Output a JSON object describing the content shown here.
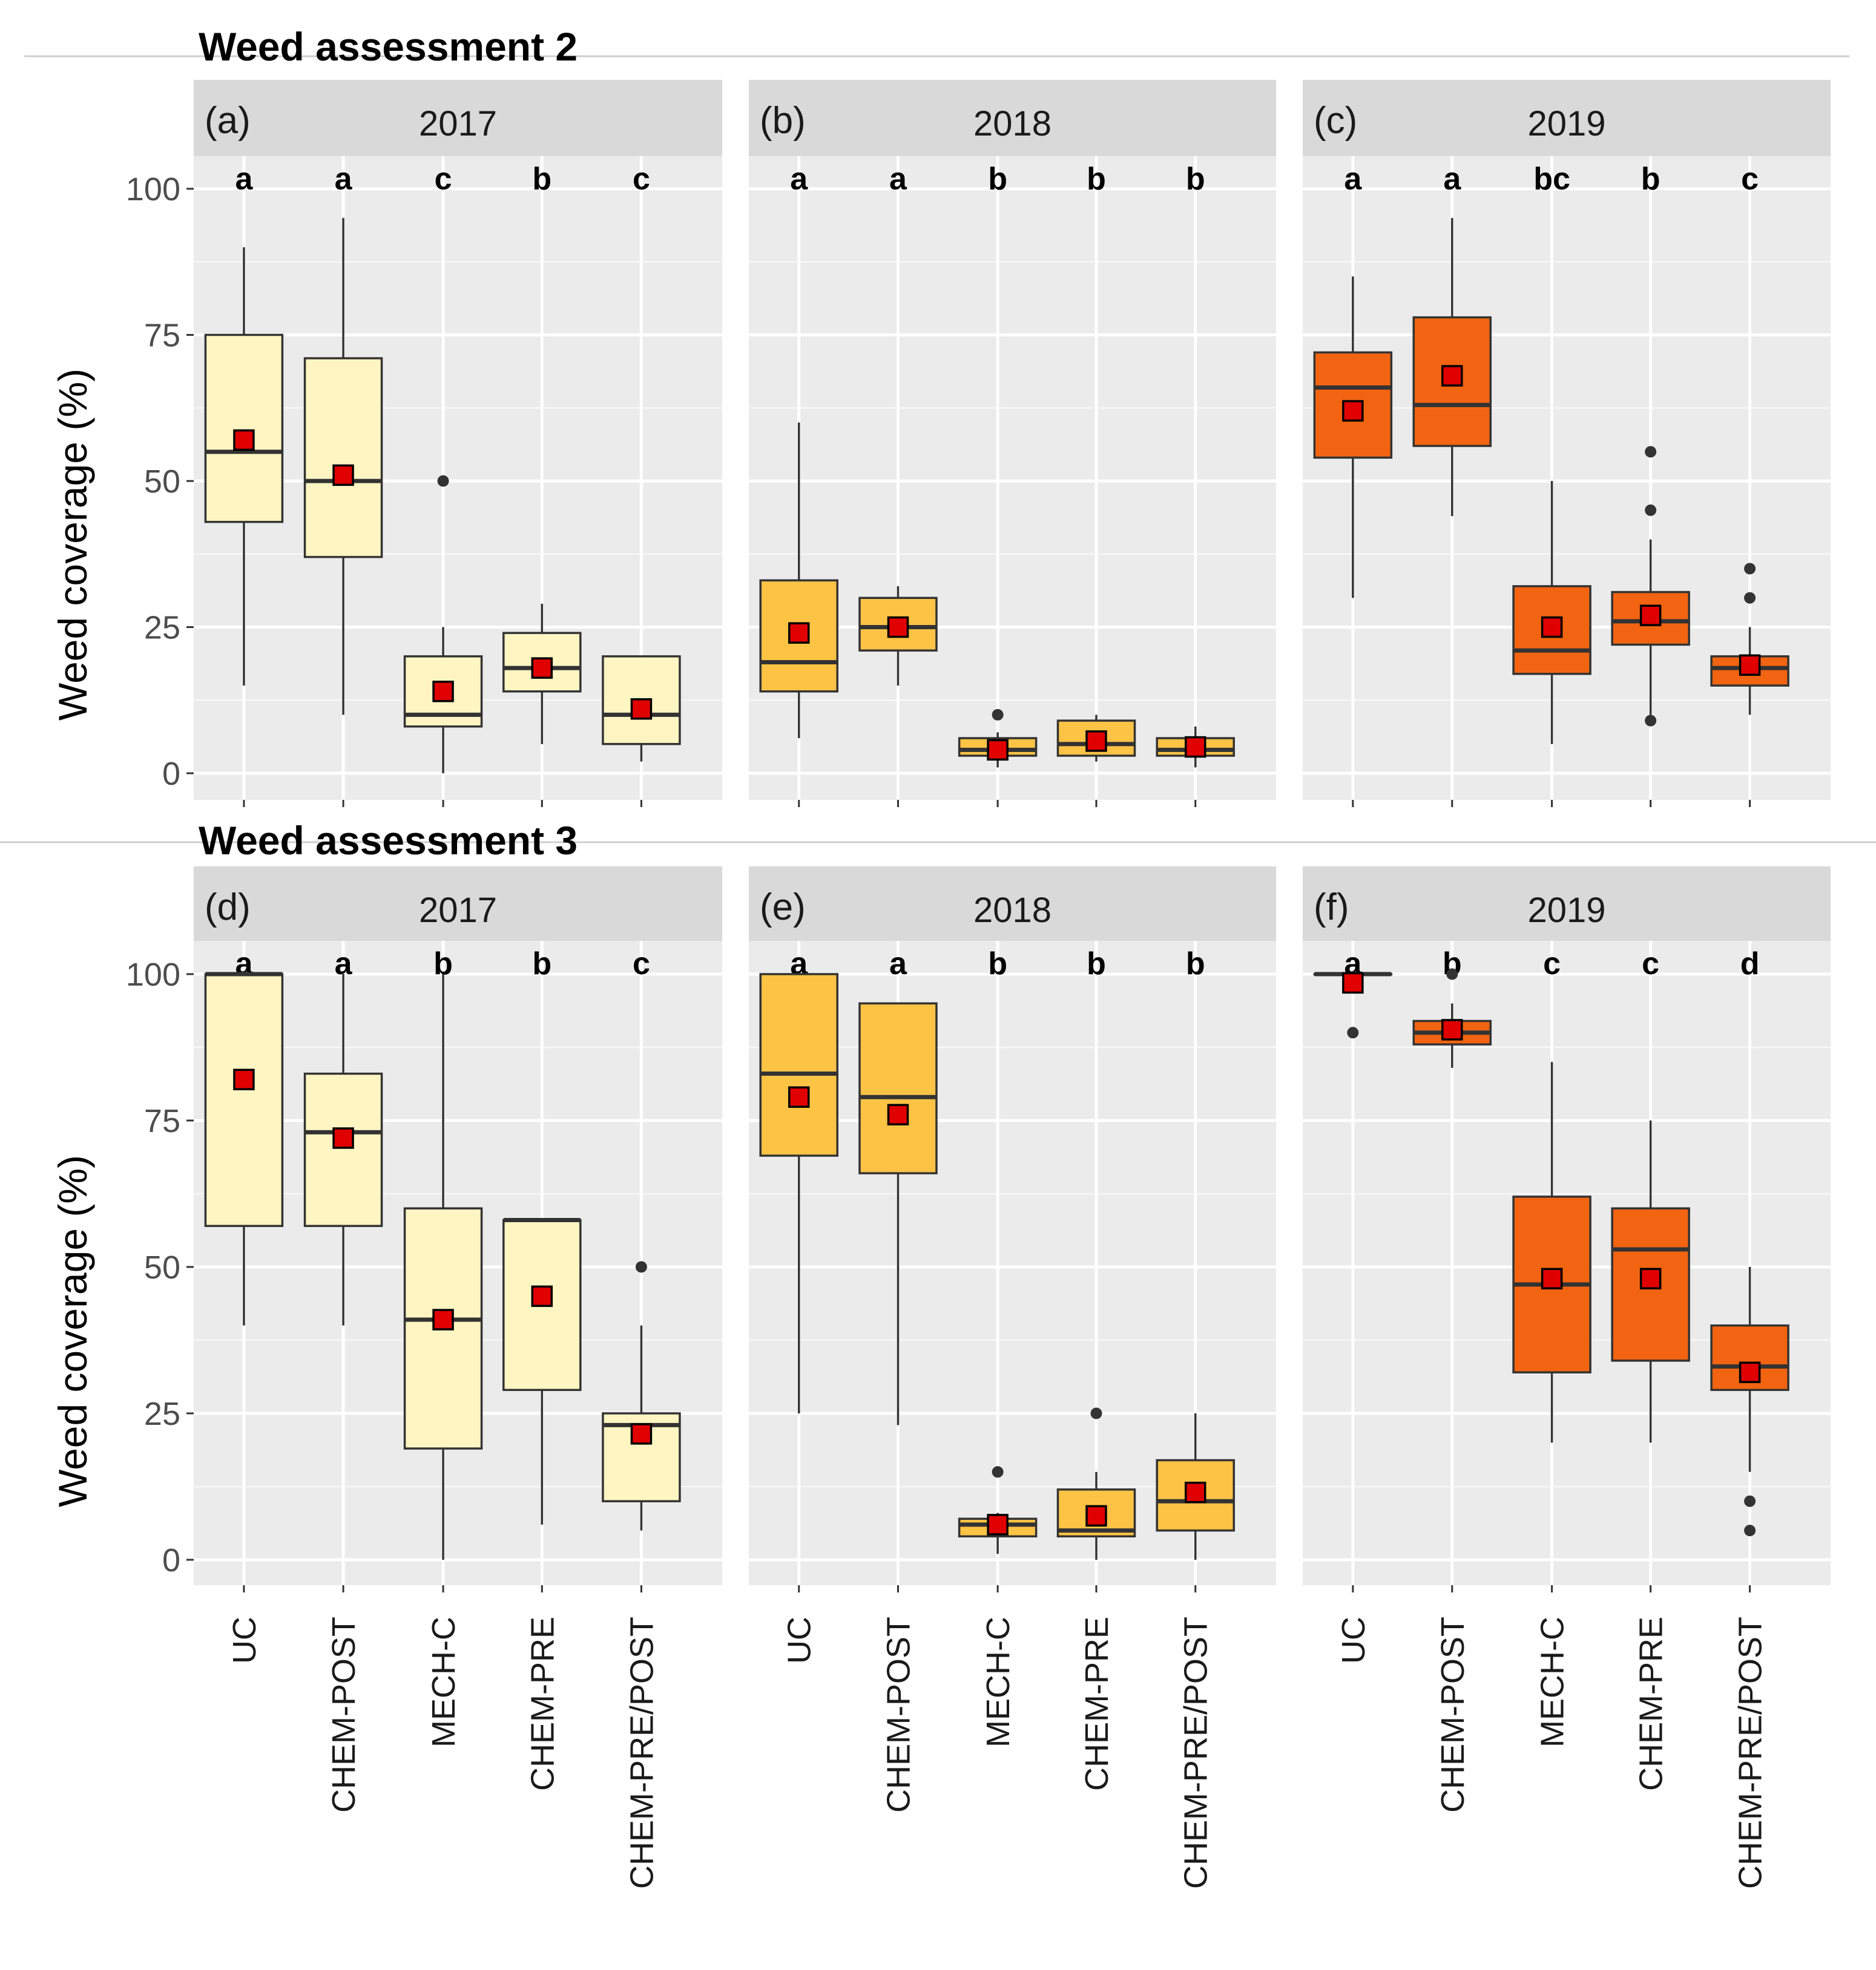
{
  "figure": {
    "ylabel": "Weed coverage (%)",
    "yticks": [
      0,
      25,
      50,
      75,
      100
    ],
    "treatments": [
      "UC",
      "CHEM-POST",
      "MECH-C",
      "CHEM-PRE",
      "CHEM-PRE/POST"
    ],
    "year_colors": {
      "2017": "#fff5c2",
      "2018": "#fdc345",
      "2019": "#f26411"
    },
    "panel_bg": "#ebebeb",
    "strip_bg": "#d9d9d9",
    "mean_marker_color": "#e00000"
  },
  "chart_data": [
    {
      "type": "boxplot",
      "assessment": "Weed assessment 2",
      "panel": "(a)",
      "year": "2017",
      "ylim": [
        -4,
        107
      ],
      "boxes": [
        {
          "treatment": "UC",
          "letter": "a",
          "min": 15,
          "q1": 43,
          "median": 55,
          "q3": 75,
          "max": 90,
          "mean": 57,
          "outliers": []
        },
        {
          "treatment": "CHEM-POST",
          "letter": "a",
          "min": 10,
          "q1": 37,
          "median": 50,
          "q3": 71,
          "max": 95,
          "mean": 51,
          "outliers": []
        },
        {
          "treatment": "MECH-C",
          "letter": "c",
          "min": 0,
          "q1": 8,
          "median": 10,
          "q3": 20,
          "max": 25,
          "mean": 14,
          "outliers": [
            50
          ]
        },
        {
          "treatment": "CHEM-PRE",
          "letter": "b",
          "min": 5,
          "q1": 14,
          "median": 18,
          "q3": 24,
          "max": 29,
          "mean": 18,
          "outliers": []
        },
        {
          "treatment": "CHEM-PRE/POST",
          "letter": "c",
          "min": 2,
          "q1": 5,
          "median": 10,
          "q3": 20,
          "max": 20,
          "mean": 11,
          "outliers": []
        }
      ]
    },
    {
      "type": "boxplot",
      "assessment": "Weed assessment 2",
      "panel": "(b)",
      "year": "2018",
      "ylim": [
        -4,
        107
      ],
      "boxes": [
        {
          "treatment": "UC",
          "letter": "a",
          "min": 6,
          "q1": 14,
          "median": 19,
          "q3": 33,
          "max": 60,
          "mean": 24,
          "outliers": []
        },
        {
          "treatment": "CHEM-POST",
          "letter": "a",
          "min": 15,
          "q1": 21,
          "median": 25,
          "q3": 30,
          "max": 32,
          "mean": 25,
          "outliers": []
        },
        {
          "treatment": "MECH-C",
          "letter": "b",
          "min": 1,
          "q1": 3,
          "median": 4,
          "q3": 6,
          "max": 7,
          "mean": 4,
          "outliers": [
            10
          ]
        },
        {
          "treatment": "CHEM-PRE",
          "letter": "b",
          "min": 2,
          "q1": 3,
          "median": 5,
          "q3": 9,
          "max": 10,
          "mean": 5.5,
          "outliers": []
        },
        {
          "treatment": "CHEM-PRE/POST",
          "letter": "b",
          "min": 1,
          "q1": 3,
          "median": 4,
          "q3": 6,
          "max": 8,
          "mean": 4.5,
          "outliers": []
        }
      ]
    },
    {
      "type": "boxplot",
      "assessment": "Weed assessment 2",
      "panel": "(c)",
      "year": "2019",
      "ylim": [
        -4,
        107
      ],
      "boxes": [
        {
          "treatment": "UC",
          "letter": "a",
          "min": 30,
          "q1": 54,
          "median": 66,
          "q3": 72,
          "max": 85,
          "mean": 62,
          "outliers": []
        },
        {
          "treatment": "CHEM-POST",
          "letter": "a",
          "min": 44,
          "q1": 56,
          "median": 63,
          "q3": 78,
          "max": 95,
          "mean": 68,
          "outliers": []
        },
        {
          "treatment": "MECH-C",
          "letter": "bc",
          "min": 5,
          "q1": 17,
          "median": 21,
          "q3": 32,
          "max": 50,
          "mean": 25,
          "outliers": []
        },
        {
          "treatment": "CHEM-PRE",
          "letter": "b",
          "min": 10,
          "q1": 22,
          "median": 26,
          "q3": 31,
          "max": 40,
          "mean": 27,
          "outliers": [
            55,
            45,
            9
          ]
        },
        {
          "treatment": "CHEM-PRE/POST",
          "letter": "c",
          "min": 10,
          "q1": 15,
          "median": 18,
          "q3": 20,
          "max": 25,
          "mean": 18.5,
          "outliers": [
            35,
            30
          ]
        }
      ]
    },
    {
      "type": "boxplot",
      "assessment": "Weed assessment 3",
      "panel": "(d)",
      "year": "2017",
      "ylim": [
        -4,
        107
      ],
      "boxes": [
        {
          "treatment": "UC",
          "letter": "a",
          "min": 40,
          "q1": 57,
          "median": 100,
          "q3": 100,
          "max": 100,
          "mean": 82,
          "outliers": []
        },
        {
          "treatment": "CHEM-POST",
          "letter": "a",
          "min": 40,
          "q1": 57,
          "median": 73,
          "q3": 83,
          "max": 100,
          "mean": 72,
          "outliers": []
        },
        {
          "treatment": "MECH-C",
          "letter": "b",
          "min": 0,
          "q1": 19,
          "median": 41,
          "q3": 60,
          "max": 100,
          "mean": 41,
          "outliers": []
        },
        {
          "treatment": "CHEM-PRE",
          "letter": "b",
          "min": 6,
          "q1": 29,
          "median": 58,
          "q3": 58,
          "max": 58,
          "mean": 45,
          "outliers": []
        },
        {
          "treatment": "CHEM-PRE/POST",
          "letter": "c",
          "min": 5,
          "q1": 10,
          "median": 23,
          "q3": 25,
          "max": 40,
          "mean": 21.5,
          "outliers": [
            50
          ]
        }
      ]
    },
    {
      "type": "boxplot",
      "assessment": "Weed assessment 3",
      "panel": "(e)",
      "year": "2018",
      "ylim": [
        -4,
        107
      ],
      "boxes": [
        {
          "treatment": "UC",
          "letter": "a",
          "min": 25,
          "q1": 69,
          "median": 83,
          "q3": 100,
          "max": 100,
          "mean": 79,
          "outliers": []
        },
        {
          "treatment": "CHEM-POST",
          "letter": "a",
          "min": 23,
          "q1": 66,
          "median": 79,
          "q3": 95,
          "max": 95,
          "mean": 76,
          "outliers": []
        },
        {
          "treatment": "MECH-C",
          "letter": "b",
          "min": 1,
          "q1": 4,
          "median": 6,
          "q3": 7,
          "max": 8,
          "mean": 6,
          "outliers": [
            15
          ]
        },
        {
          "treatment": "CHEM-PRE",
          "letter": "b",
          "min": 0,
          "q1": 4,
          "median": 5,
          "q3": 12,
          "max": 15,
          "mean": 7.5,
          "outliers": [
            25
          ]
        },
        {
          "treatment": "CHEM-PRE/POST",
          "letter": "b",
          "min": 0,
          "q1": 5,
          "median": 10,
          "q3": 17,
          "max": 25,
          "mean": 11.5,
          "outliers": []
        }
      ]
    },
    {
      "type": "boxplot",
      "assessment": "Weed assessment 3",
      "panel": "(f)",
      "year": "2019",
      "ylim": [
        -4,
        107
      ],
      "boxes": [
        {
          "treatment": "UC",
          "letter": "a",
          "min": 100,
          "q1": 100,
          "median": 100,
          "q3": 100,
          "max": 100,
          "mean": 98.5,
          "outliers": [
            90
          ]
        },
        {
          "treatment": "CHEM-POST",
          "letter": "b",
          "min": 84,
          "q1": 88,
          "median": 90,
          "q3": 92,
          "max": 95,
          "mean": 90.5,
          "outliers": [
            100
          ]
        },
        {
          "treatment": "MECH-C",
          "letter": "c",
          "min": 20,
          "q1": 32,
          "median": 47,
          "q3": 62,
          "max": 85,
          "mean": 48,
          "outliers": []
        },
        {
          "treatment": "CHEM-PRE",
          "letter": "c",
          "min": 20,
          "q1": 34,
          "median": 53,
          "q3": 60,
          "max": 75,
          "mean": 48,
          "outliers": []
        },
        {
          "treatment": "CHEM-PRE/POST",
          "letter": "d",
          "min": 15,
          "q1": 29,
          "median": 33,
          "q3": 40,
          "max": 50,
          "mean": 32,
          "outliers": [
            10,
            5
          ]
        }
      ]
    }
  ]
}
